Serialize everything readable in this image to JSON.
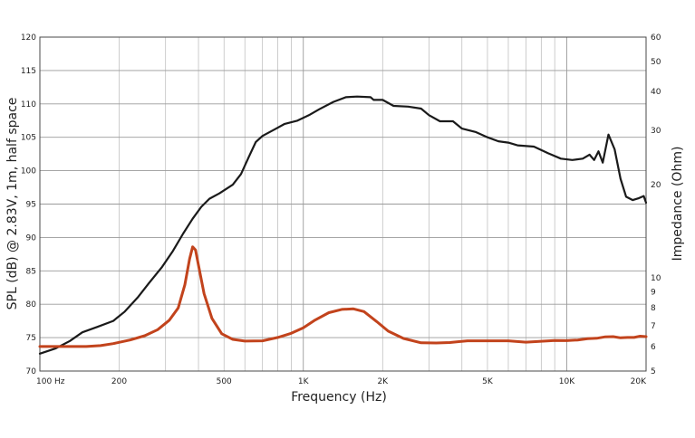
{
  "chart_data": {
    "type": "line",
    "xlabel": "Frequency (Hz)",
    "ylabel": "SPL (dB) @ 2.83V, 1m, half space",
    "y2label": "Impedance (Ohm)",
    "x_scale": "log",
    "xlim": [
      100,
      20000
    ],
    "ylim": [
      70,
      120
    ],
    "y2lim": [
      5,
      60
    ],
    "y2_scale": "log",
    "grid": true,
    "x_ticks": [
      {
        "v": 100,
        "label": "100  Hz"
      },
      {
        "v": 200,
        "label": "200"
      },
      {
        "v": 500,
        "label": "500"
      },
      {
        "v": 1000,
        "label": "1K"
      },
      {
        "v": 2000,
        "label": "2K"
      },
      {
        "v": 5000,
        "label": "5K"
      },
      {
        "v": 10000,
        "label": "10K"
      },
      {
        "v": 20000,
        "label": "20K"
      }
    ],
    "y_ticks": [
      "70",
      "75",
      "80",
      "85",
      "90",
      "95",
      "100",
      "105",
      "110",
      "115",
      "120"
    ],
    "y2_ticks": [
      {
        "v": 5,
        "label": "5"
      },
      {
        "v": 6,
        "label": "6"
      },
      {
        "v": 7,
        "label": "7"
      },
      {
        "v": 8,
        "label": "8"
      },
      {
        "v": 9,
        "label": "9"
      },
      {
        "v": 10,
        "label": "10"
      },
      {
        "v": 20,
        "label": "20"
      },
      {
        "v": 30,
        "label": "30"
      },
      {
        "v": 40,
        "label": "40"
      },
      {
        "v": 50,
        "label": "50"
      },
      {
        "v": 60,
        "label": "60"
      }
    ],
    "series": [
      {
        "axis": "left",
        "color": "#1a1a1a",
        "points": [
          [
            100,
            72.6
          ],
          [
            115,
            73.4
          ],
          [
            130,
            74.5
          ],
          [
            145,
            75.8
          ],
          [
            165,
            76.6
          ],
          [
            190,
            77.5
          ],
          [
            210,
            78.9
          ],
          [
            235,
            81.0
          ],
          [
            260,
            83.2
          ],
          [
            290,
            85.5
          ],
          [
            320,
            88.0
          ],
          [
            350,
            90.6
          ],
          [
            380,
            92.8
          ],
          [
            410,
            94.6
          ],
          [
            440,
            95.8
          ],
          [
            480,
            96.6
          ],
          [
            540,
            97.9
          ],
          [
            580,
            99.5
          ],
          [
            620,
            102.0
          ],
          [
            660,
            104.3
          ],
          [
            700,
            105.2
          ],
          [
            780,
            106.2
          ],
          [
            850,
            107.0
          ],
          [
            950,
            107.5
          ],
          [
            1050,
            108.3
          ],
          [
            1150,
            109.2
          ],
          [
            1300,
            110.3
          ],
          [
            1450,
            111.0
          ],
          [
            1600,
            111.1
          ],
          [
            1800,
            111.0
          ],
          [
            1850,
            110.6
          ],
          [
            2000,
            110.6
          ],
          [
            2200,
            109.7
          ],
          [
            2500,
            109.6
          ],
          [
            2800,
            109.3
          ],
          [
            3000,
            108.3
          ],
          [
            3300,
            107.4
          ],
          [
            3700,
            107.4
          ],
          [
            4000,
            106.3
          ],
          [
            4500,
            105.8
          ],
          [
            5000,
            105.0
          ],
          [
            5500,
            104.4
          ],
          [
            6000,
            104.2
          ],
          [
            6500,
            103.8
          ],
          [
            7500,
            103.6
          ],
          [
            8500,
            102.6
          ],
          [
            9500,
            101.8
          ],
          [
            10500,
            101.6
          ],
          [
            11500,
            101.8
          ],
          [
            12200,
            102.4
          ],
          [
            12700,
            101.6
          ],
          [
            13200,
            102.9
          ],
          [
            13700,
            101.2
          ],
          [
            14400,
            105.4
          ],
          [
            15200,
            103.2
          ],
          [
            16000,
            98.8
          ],
          [
            16800,
            96.1
          ],
          [
            17800,
            95.6
          ],
          [
            18800,
            95.9
          ],
          [
            19600,
            96.2
          ],
          [
            20000,
            95.2
          ]
        ]
      },
      {
        "axis": "right",
        "color": "#c2431c",
        "points": [
          [
            100,
            6.0
          ],
          [
            120,
            6.0
          ],
          [
            150,
            6.0
          ],
          [
            170,
            6.04
          ],
          [
            190,
            6.13
          ],
          [
            220,
            6.3
          ],
          [
            250,
            6.5
          ],
          [
            280,
            6.8
          ],
          [
            310,
            7.3
          ],
          [
            335,
            8.0
          ],
          [
            355,
            9.5
          ],
          [
            370,
            11.5
          ],
          [
            380,
            12.6
          ],
          [
            390,
            12.3
          ],
          [
            400,
            11.0
          ],
          [
            420,
            8.9
          ],
          [
            450,
            7.4
          ],
          [
            490,
            6.6
          ],
          [
            540,
            6.33
          ],
          [
            600,
            6.25
          ],
          [
            700,
            6.26
          ],
          [
            800,
            6.42
          ],
          [
            900,
            6.62
          ],
          [
            1000,
            6.9
          ],
          [
            1100,
            7.28
          ],
          [
            1250,
            7.72
          ],
          [
            1400,
            7.91
          ],
          [
            1550,
            7.94
          ],
          [
            1700,
            7.78
          ],
          [
            1900,
            7.22
          ],
          [
            2100,
            6.73
          ],
          [
            2400,
            6.37
          ],
          [
            2800,
            6.17
          ],
          [
            3200,
            6.16
          ],
          [
            3600,
            6.18
          ],
          [
            4200,
            6.26
          ],
          [
            5000,
            6.26
          ],
          [
            6000,
            6.26
          ],
          [
            7000,
            6.2
          ],
          [
            8000,
            6.24
          ],
          [
            9000,
            6.28
          ],
          [
            10000,
            6.27
          ],
          [
            11000,
            6.3
          ],
          [
            12000,
            6.36
          ],
          [
            13000,
            6.38
          ],
          [
            14000,
            6.45
          ],
          [
            15000,
            6.46
          ],
          [
            16000,
            6.4
          ],
          [
            17000,
            6.42
          ],
          [
            18000,
            6.42
          ],
          [
            19000,
            6.48
          ],
          [
            20000,
            6.46
          ]
        ]
      }
    ]
  }
}
